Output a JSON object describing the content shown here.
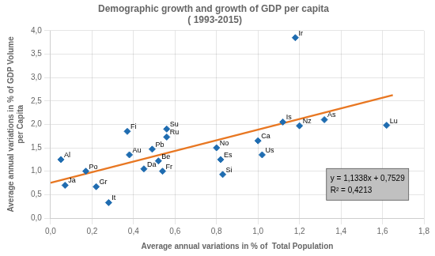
{
  "chart_data": {
    "type": "scatter",
    "title": "Demographic growth and growth of GDP per capita\n ( 1993-2015)",
    "x_label": "Average annual variations in % of  Total Population",
    "y_label": "Average annual variations in % of GDP Volume\nper Capita",
    "series": [
      {
        "type": "scatter",
        "marker": "diamond",
        "color": "#1F6CB0",
        "labels": [
          "Al",
          "Ja",
          "Po",
          "Gr",
          "It",
          "Au",
          "Fi",
          "Da",
          "Pb",
          "Be",
          "Fr",
          "Su",
          "Ru",
          "No",
          "Es",
          "Si",
          "Ca",
          "Us",
          "Is",
          "Ir",
          "Nz",
          "As",
          "Lu"
        ],
        "x": [
          0.05,
          0.07,
          0.17,
          0.22,
          0.28,
          0.38,
          0.37,
          0.45,
          0.49,
          0.52,
          0.54,
          0.56,
          0.56,
          0.8,
          0.82,
          0.83,
          1.0,
          1.02,
          1.12,
          1.18,
          1.2,
          1.32,
          1.62
        ],
        "values": [
          1.25,
          0.7,
          1.0,
          0.67,
          0.33,
          1.35,
          1.85,
          1.05,
          1.47,
          1.22,
          1.0,
          1.9,
          1.73,
          1.5,
          1.25,
          0.93,
          1.65,
          1.35,
          2.05,
          3.85,
          1.97,
          2.1,
          1.98
        ]
      },
      {
        "type": "line",
        "color": "#E87722",
        "x": [
          0.0,
          1.65
        ],
        "values": [
          0.7529,
          2.62367
        ]
      }
    ],
    "annotations": [
      {
        "text": "y = 1,1338x + 0,7529\nR² = 0,4213",
        "x": 1.33,
        "y": 0.72,
        "color": "#C0C0C0"
      }
    ],
    "xlim": [
      0.0,
      1.8
    ],
    "ylim": [
      0.0,
      4.0
    ],
    "xticks": [
      {
        "value": 0.0,
        "label": "0,0"
      },
      {
        "value": 0.2,
        "label": "0,2"
      },
      {
        "value": 0.4,
        "label": "0,4"
      },
      {
        "value": 0.6,
        "label": "0,6"
      },
      {
        "value": 0.8,
        "label": "0,8"
      },
      {
        "value": 1.0,
        "label": "1,0"
      },
      {
        "value": 1.2,
        "label": "1,2"
      },
      {
        "value": 1.4,
        "label": "1,4"
      },
      {
        "value": 1.6,
        "label": "1,6"
      },
      {
        "value": 1.8,
        "label": "1,8"
      }
    ],
    "yticks": [
      {
        "value": 0.0,
        "label": "0,0"
      },
      {
        "value": 0.5,
        "label": "0,5"
      },
      {
        "value": 1.0,
        "label": "1,0"
      },
      {
        "value": 1.5,
        "label": "1,5"
      },
      {
        "value": 2.0,
        "label": "2,0"
      },
      {
        "value": 2.5,
        "label": "2,5"
      },
      {
        "value": 3.0,
        "label": "3,0"
      },
      {
        "value": 3.5,
        "label": "3,5"
      },
      {
        "value": 4.0,
        "label": "4,0"
      }
    ],
    "grid": true
  }
}
